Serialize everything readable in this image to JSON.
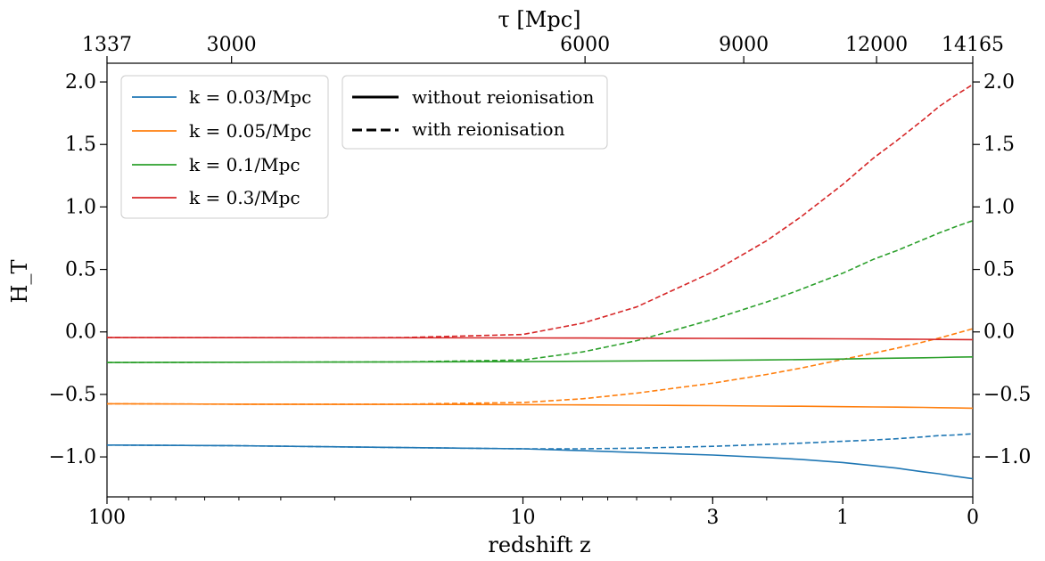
{
  "chart_data": {
    "type": "line",
    "title": "",
    "xlabel": "redshift z",
    "ylabel": "H_T",
    "top_xlabel": "τ [Mpc]",
    "x_scale": "log(1+z), reversed",
    "ylim": [
      -1.32,
      2.15
    ],
    "x_bottom_ticks": [
      {
        "z": 100,
        "label": "100"
      },
      {
        "z": 10,
        "label": "10"
      },
      {
        "z": 3,
        "label": "3"
      },
      {
        "z": 1,
        "label": "1"
      },
      {
        "z": 0,
        "label": "0"
      }
    ],
    "x_top_ticks": [
      {
        "z": 100,
        "label": "1337"
      },
      {
        "z": 51,
        "label": "3000"
      },
      {
        "z": 6.9,
        "label": "6000"
      },
      {
        "z": 2.39,
        "label": "9000"
      },
      {
        "z": 0.67,
        "label": "12000"
      },
      {
        "z": 0,
        "label": "14165"
      }
    ],
    "y_ticks": [
      {
        "value": -1.0,
        "label": "−1.0"
      },
      {
        "value": -0.5,
        "label": "−0.5"
      },
      {
        "value": 0.0,
        "label": "0.0"
      },
      {
        "value": 0.5,
        "label": "0.5"
      },
      {
        "value": 1.0,
        "label": "1.0"
      },
      {
        "value": 1.5,
        "label": "1.5"
      },
      {
        "value": 2.0,
        "label": "2.0"
      }
    ],
    "grid": false,
    "legend_colors": {
      "placement": "top-left",
      "entries": [
        {
          "label": "k = 0.03/Mpc",
          "color": "#1f77b4"
        },
        {
          "label": "k = 0.05/Mpc",
          "color": "#ff7f0e"
        },
        {
          "label": "k = 0.1/Mpc",
          "color": "#2ca02c"
        },
        {
          "label": "k = 0.3/Mpc",
          "color": "#d62728"
        }
      ]
    },
    "legend_styles": {
      "placement": "top-center",
      "entries": [
        {
          "label": "without reionisation",
          "dash": "solid"
        },
        {
          "label": "with reionisation",
          "dash": "dashed"
        }
      ]
    },
    "series": [
      {
        "name": "k = 0.03/Mpc, without reionisation",
        "color": "#1f77b4",
        "dash": "solid",
        "z": [
          100,
          50,
          20,
          10,
          7,
          5,
          3,
          2,
          1.5,
          1,
          0.7,
          0.5,
          0.3,
          0.2,
          0.1,
          0
        ],
        "values": [
          -0.905,
          -0.91,
          -0.925,
          -0.935,
          -0.95,
          -0.965,
          -0.985,
          -1.005,
          -1.02,
          -1.045,
          -1.07,
          -1.09,
          -1.12,
          -1.135,
          -1.155,
          -1.175
        ]
      },
      {
        "name": "k = 0.03/Mpc, with reionisation",
        "color": "#1f77b4",
        "dash": "dashed",
        "z": [
          100,
          50,
          20,
          10,
          7,
          5,
          3,
          2,
          1.5,
          1,
          0.7,
          0.5,
          0.3,
          0.2,
          0.1,
          0
        ],
        "values": [
          -0.905,
          -0.91,
          -0.925,
          -0.935,
          -0.935,
          -0.93,
          -0.915,
          -0.9,
          -0.89,
          -0.875,
          -0.865,
          -0.855,
          -0.84,
          -0.83,
          -0.825,
          -0.815
        ]
      },
      {
        "name": "k = 0.05/Mpc, without reionisation",
        "color": "#ff7f0e",
        "dash": "solid",
        "z": [
          100,
          50,
          20,
          10,
          7,
          5,
          3,
          2,
          1.5,
          1,
          0.7,
          0.5,
          0.3,
          0.2,
          0.1,
          0
        ],
        "values": [
          -0.575,
          -0.578,
          -0.58,
          -0.582,
          -0.584,
          -0.586,
          -0.59,
          -0.593,
          -0.595,
          -0.598,
          -0.6,
          -0.602,
          -0.604,
          -0.606,
          -0.608,
          -0.61
        ]
      },
      {
        "name": "k = 0.05/Mpc, with reionisation",
        "color": "#ff7f0e",
        "dash": "dashed",
        "z": [
          100,
          50,
          20,
          10,
          7,
          5,
          3,
          2,
          1.5,
          1,
          0.7,
          0.5,
          0.3,
          0.2,
          0.1,
          0
        ],
        "values": [
          -0.575,
          -0.578,
          -0.578,
          -0.565,
          -0.535,
          -0.49,
          -0.41,
          -0.34,
          -0.29,
          -0.22,
          -0.17,
          -0.13,
          -0.08,
          -0.05,
          -0.015,
          0.025
        ]
      },
      {
        "name": "k = 0.1/Mpc, without reionisation",
        "color": "#2ca02c",
        "dash": "solid",
        "z": [
          100,
          50,
          20,
          10,
          7,
          5,
          3,
          2,
          1.5,
          1,
          0.7,
          0.5,
          0.3,
          0.2,
          0.1,
          0
        ],
        "values": [
          -0.245,
          -0.243,
          -0.24,
          -0.238,
          -0.235,
          -0.232,
          -0.228,
          -0.224,
          -0.221,
          -0.217,
          -0.213,
          -0.21,
          -0.207,
          -0.205,
          -0.202,
          -0.2
        ]
      },
      {
        "name": "k = 0.1/Mpc, with reionisation",
        "color": "#2ca02c",
        "dash": "dashed",
        "z": [
          100,
          50,
          20,
          10,
          7,
          5,
          3,
          2,
          1.5,
          1,
          0.7,
          0.5,
          0.3,
          0.2,
          0.1,
          0
        ],
        "values": [
          -0.245,
          -0.243,
          -0.24,
          -0.225,
          -0.16,
          -0.07,
          0.1,
          0.24,
          0.34,
          0.47,
          0.58,
          0.65,
          0.74,
          0.79,
          0.84,
          0.89
        ]
      },
      {
        "name": "k = 0.3/Mpc, without reionisation",
        "color": "#d62728",
        "dash": "solid",
        "z": [
          100,
          50,
          20,
          10,
          7,
          5,
          3,
          2,
          1.5,
          1,
          0.7,
          0.5,
          0.3,
          0.2,
          0.1,
          0
        ],
        "values": [
          -0.045,
          -0.046,
          -0.047,
          -0.048,
          -0.049,
          -0.05,
          -0.052,
          -0.053,
          -0.054,
          -0.055,
          -0.057,
          -0.058,
          -0.059,
          -0.06,
          -0.061,
          -0.062
        ]
      },
      {
        "name": "k = 0.3/Mpc, with reionisation",
        "color": "#d62728",
        "dash": "dashed",
        "z": [
          100,
          50,
          20,
          10,
          7,
          5,
          3,
          2,
          1.5,
          1,
          0.7,
          0.5,
          0.3,
          0.2,
          0.1,
          0
        ],
        "values": [
          -0.045,
          -0.046,
          -0.045,
          -0.02,
          0.07,
          0.2,
          0.48,
          0.73,
          0.92,
          1.18,
          1.39,
          1.53,
          1.7,
          1.8,
          1.89,
          1.98
        ]
      }
    ]
  }
}
